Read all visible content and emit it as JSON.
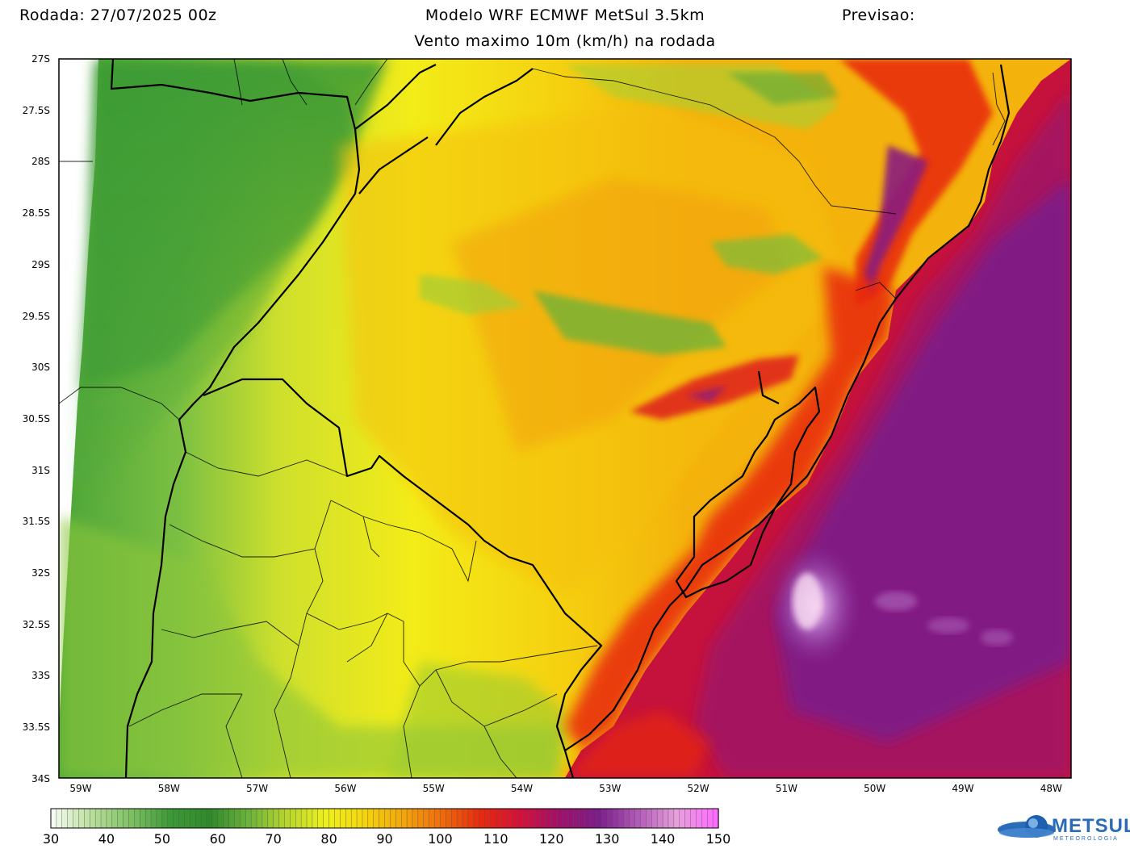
{
  "header": {
    "run_label": "Rodada: 27/07/2025 00z",
    "model": "Modelo WRF ECMWF MetSul 3.5km",
    "subtitle": "Vento maximo 10m (km/h) na rodada",
    "forecast_label": "Previsao:"
  },
  "map": {
    "lat_labels": [
      "27S",
      "27.5S",
      "28S",
      "28.5S",
      "29S",
      "29.5S",
      "30S",
      "30.5S",
      "31S",
      "31.5S",
      "32S",
      "32.5S",
      "33S",
      "33.5S",
      "34S"
    ],
    "lon_labels": [
      "59W",
      "58W",
      "57W",
      "56W",
      "55W",
      "54W",
      "53W",
      "52W",
      "51W",
      "50W",
      "49W",
      "48W"
    ]
  },
  "colorbar": {
    "labels": [
      "30",
      "40",
      "50",
      "60",
      "70",
      "80",
      "90",
      "100",
      "110",
      "120",
      "130",
      "140",
      "150"
    ],
    "colors": [
      "#f4fbef",
      "#b9de9a",
      "#7cc062",
      "#3b9a35",
      "#2f8a2a",
      "#6bb23a",
      "#b8d62c",
      "#eef01c",
      "#f5d40e",
      "#f2a40a",
      "#ef6a0c",
      "#e8280f",
      "#d4103a",
      "#a0106a",
      "#7b1d8a",
      "#b25ab8",
      "#e7a0dc",
      "#ff6bff"
    ]
  },
  "logo": {
    "name": "METSUL",
    "sub": "METEOROLOGIA"
  }
}
